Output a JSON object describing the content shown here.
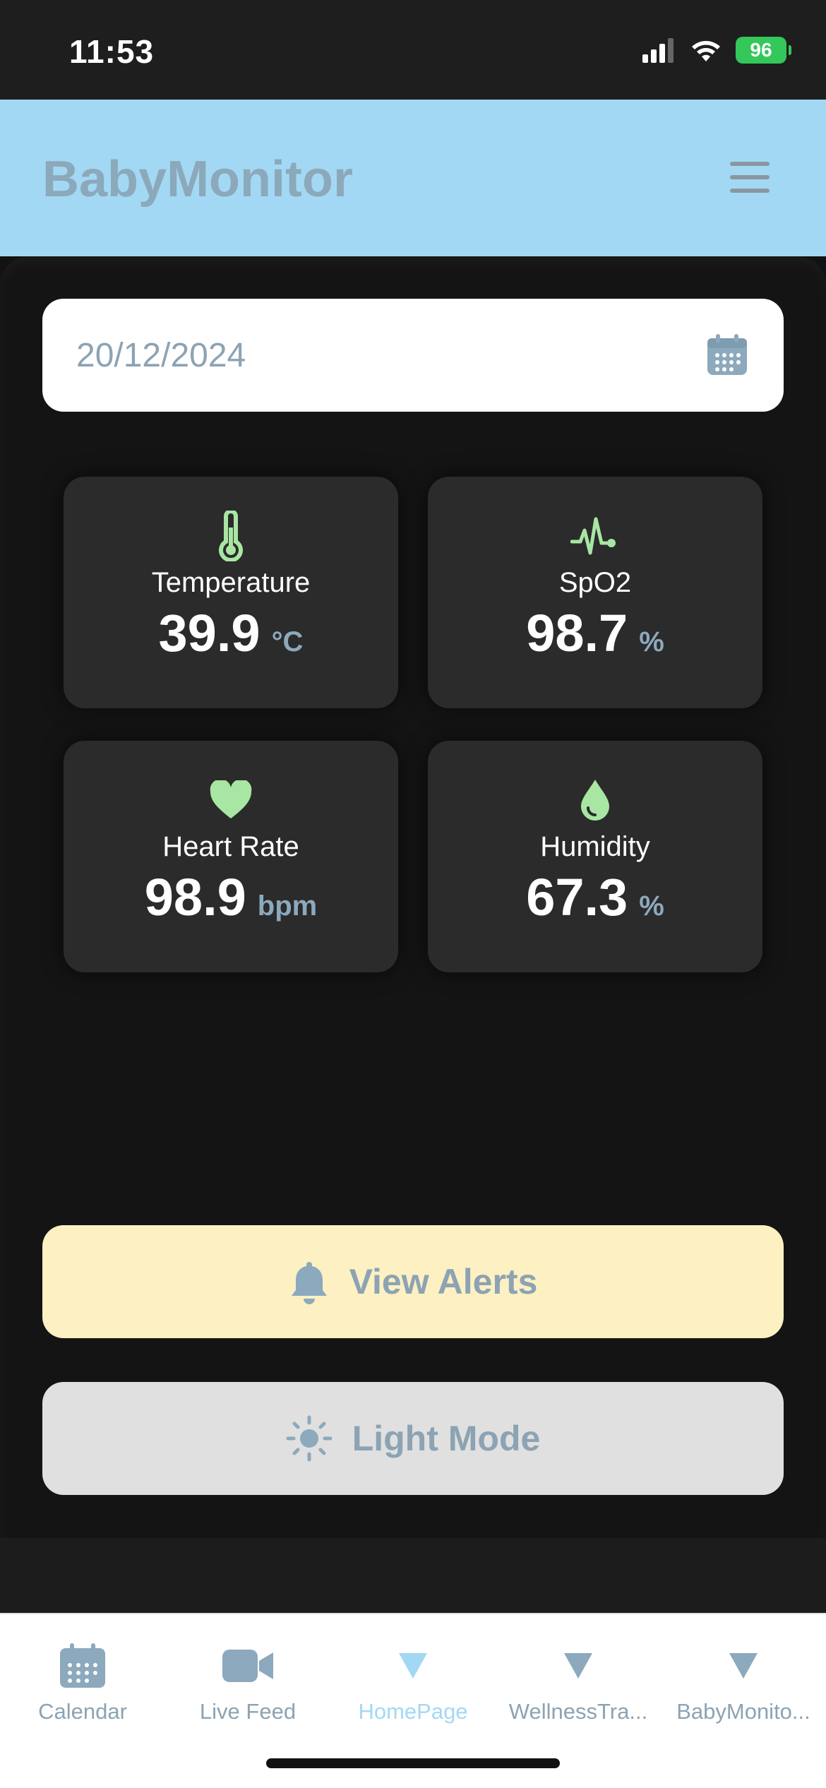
{
  "status_bar": {
    "time": "11:53",
    "battery": "96"
  },
  "header": {
    "title": "BabyMonitor",
    "menu_icon": "hamburger-menu-icon"
  },
  "date_picker": {
    "value": "20/12/2024",
    "icon": "calendar-icon"
  },
  "metrics": [
    {
      "label": "Temperature",
      "value": "39.9",
      "unit": "°C",
      "icon": "thermometer-icon"
    },
    {
      "label": "SpO2",
      "value": "98.7",
      "unit": "%",
      "icon": "pulse-icon"
    },
    {
      "label": "Heart Rate",
      "value": "98.9",
      "unit": "bpm",
      "icon": "heart-icon"
    },
    {
      "label": "Humidity",
      "value": "67.3",
      "unit": "%",
      "icon": "water-drop-icon"
    }
  ],
  "buttons": {
    "alerts": "View Alerts",
    "light_mode": "Light Mode"
  },
  "tab_bar": {
    "tabs": [
      {
        "label": "Calendar",
        "active": false
      },
      {
        "label": "Live Feed",
        "active": false
      },
      {
        "label": "HomePage",
        "active": true
      },
      {
        "label": "WellnessTra...",
        "active": false
      },
      {
        "label": "BabyMonito...",
        "active": false
      }
    ]
  },
  "colors": {
    "header_bg": "#a3d8f4",
    "accent_green": "#a8e6a3",
    "muted_blue": "#8ca3b3",
    "alerts_bg": "#fdf0c2",
    "light_mode_bg": "#e0e0e0"
  }
}
